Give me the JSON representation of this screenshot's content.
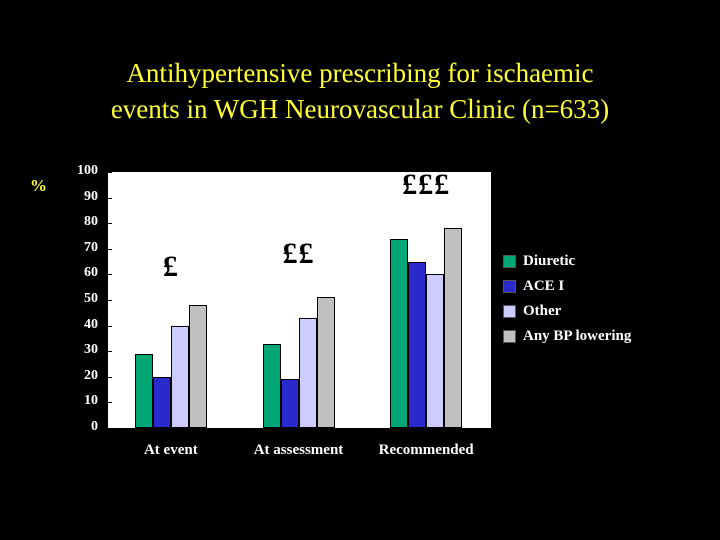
{
  "title": {
    "line1": "Antihypertensive  prescribing for ischaemic",
    "line2": "events in WGH Neurovascular Clinic (n=633)"
  },
  "chart_data": {
    "type": "bar",
    "title": "Antihypertensive prescribing for ischaemic events in WGH Neurovascular Clinic (n=633)",
    "categories": [
      "At event",
      "At assessment",
      "Recommended"
    ],
    "series": [
      {
        "name": "Diuretic",
        "color": "#00A878",
        "values": [
          29,
          33,
          74
        ]
      },
      {
        "name": "ACE I",
        "color": "#2A2ACC",
        "values": [
          20,
          19,
          65
        ]
      },
      {
        "name": "Other",
        "color": "#CCCCFF",
        "values": [
          40,
          43,
          60
        ]
      },
      {
        "name": "Any BP lowering",
        "color": "#C0C0C0",
        "values": [
          48,
          51,
          78
        ]
      }
    ],
    "xlabel": "",
    "ylabel": "%",
    "ylim": [
      0,
      100
    ],
    "yticks": [
      0,
      10,
      20,
      30,
      40,
      50,
      60,
      70,
      80,
      90,
      100
    ],
    "grid": false,
    "legend_position": "right",
    "annotations": [
      {
        "text": "£",
        "group": 0,
        "y_value": 63
      },
      {
        "text": "££",
        "group": 1,
        "y_value": 68
      },
      {
        "text": "£££",
        "group": 2,
        "y_value": 95
      }
    ]
  }
}
